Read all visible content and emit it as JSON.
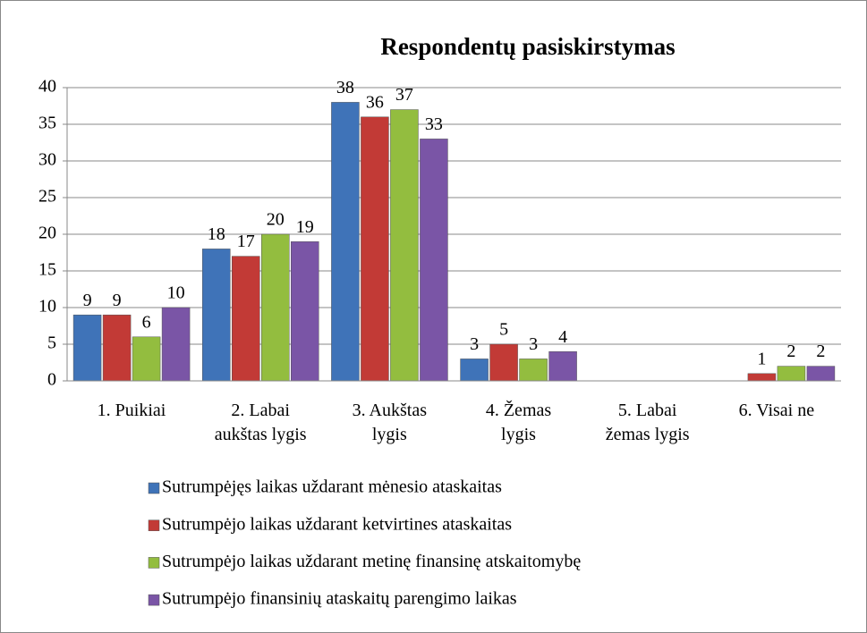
{
  "chart_data": {
    "type": "bar",
    "title": "Respondentų pasiskirstymas",
    "categories": [
      "1. Puikiai",
      "2. Labai\naukštas lygis",
      "3. Aukštas\nlygis",
      "4. Žemas\nlygis",
      "5. Labai\nžemas lygis",
      "6. Visai ne"
    ],
    "series": [
      {
        "name": "Sutrumpėjęs laikas uždarant mėnesio ataskaitas",
        "color": "#3f73b8",
        "values": [
          9,
          18,
          38,
          3,
          null,
          null
        ]
      },
      {
        "name": "Sutrumpėjo laikas uždarant ketvirtines ataskaitas",
        "color": "#c23a36",
        "values": [
          9,
          17,
          36,
          5,
          null,
          1
        ]
      },
      {
        "name": "Sutrumpėjo laikas uždarant metinę finansinę atskaitomybę",
        "color": "#93bd3f",
        "values": [
          6,
          20,
          37,
          3,
          null,
          2
        ]
      },
      {
        "name": "Sutrumpėjo finansinių ataskaitų parengimo laikas",
        "color": "#7a55a6",
        "values": [
          10,
          19,
          33,
          4,
          null,
          2
        ]
      }
    ],
    "ylim": [
      0,
      40
    ],
    "yticks": [
      0,
      5,
      10,
      15,
      20,
      25,
      30,
      35,
      40
    ],
    "grid": true,
    "legend": "bottom"
  }
}
